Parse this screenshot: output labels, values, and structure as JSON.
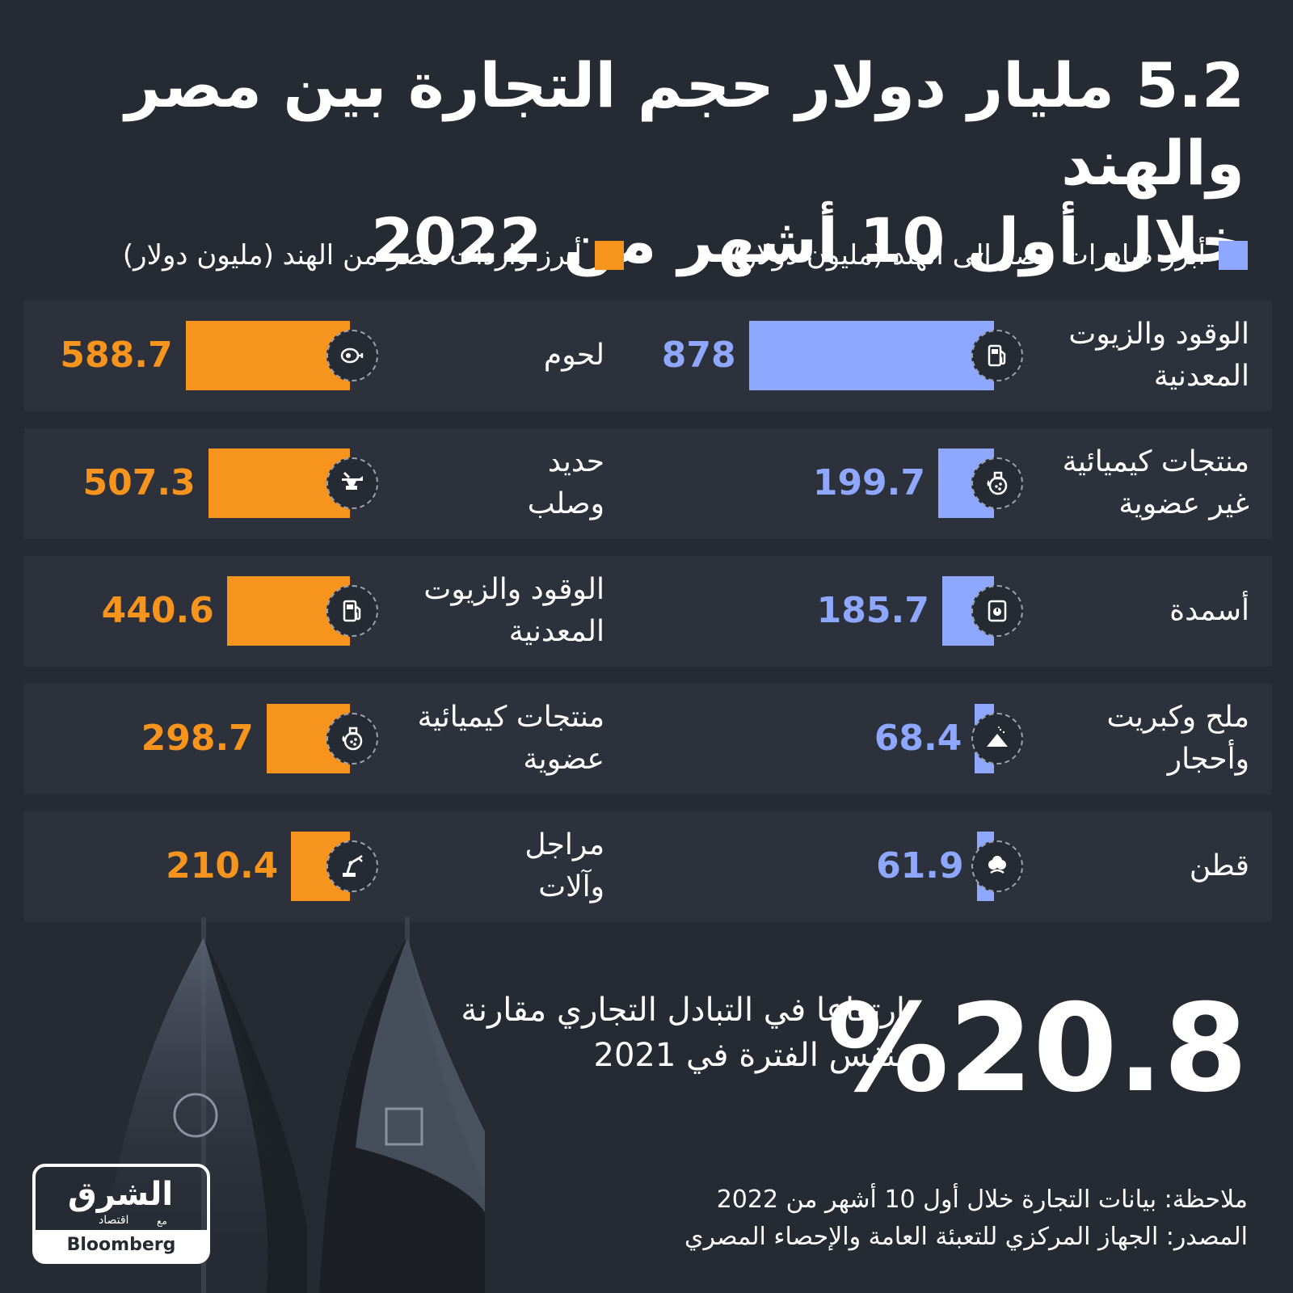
{
  "title_line1": "5.2 مليار دولار حجم التجارة بين مصر والهند",
  "title_line2": "خلال أول 10 أشهر من 2022",
  "colors": {
    "exports": "#8ea7ff",
    "imports": "#f7941d",
    "background": "#262a33",
    "band": "#2c313b"
  },
  "chart_data": [
    {
      "type": "bar",
      "title": "أبرز صادرات مصر إلى الهند (مليون دولار)",
      "categories": [
        "الوقود والزيوت\nالمعدنية",
        "منتجات كيميائية\nغير عضوية",
        "أسمدة",
        "ملح وكبريت\nوأحجار",
        "قطن"
      ],
      "values": [
        878,
        199.7,
        185.7,
        68.4,
        61.9
      ],
      "value_labels": [
        "878",
        "199.7",
        "185.7",
        "68.4",
        "61.9"
      ],
      "icons": [
        "fuel-pump-icon",
        "chemical-flask-icon",
        "fertilizer-bag-icon",
        "salt-pile-icon",
        "cotton-icon"
      ]
    },
    {
      "type": "bar",
      "title": "أبرز واردات مصر من الهند (مليون دولار)",
      "categories": [
        "لحوم",
        "حديد\nوصلب",
        "الوقود والزيوت\nالمعدنية",
        "منتجات كيميائية\nعضوية",
        "مراجل\nوآلات"
      ],
      "values": [
        588.7,
        507.3,
        440.6,
        298.7,
        210.4
      ],
      "value_labels": [
        "588.7",
        "507.3",
        "440.6",
        "298.7",
        "210.4"
      ],
      "icons": [
        "meat-icon",
        "anvil-icon",
        "fuel-pump-icon",
        "chemical-flask-icon",
        "robot-arm-icon"
      ]
    }
  ],
  "stat": {
    "value": "%20.8",
    "text": "ارتفاعا في التبادل التجاري مقارنة بنفس الفترة في 2021"
  },
  "note_line": "ملاحظة: بيانات التجارة خلال أول 10 أشهر من 2022",
  "source_line": "المصدر: الجهاز المركزي للتعبئة العامة والإحصاء المصري",
  "logo": {
    "arabic": "الشرق",
    "sub": "اقتصاد",
    "with": "مع",
    "brand": "Bloomberg"
  }
}
